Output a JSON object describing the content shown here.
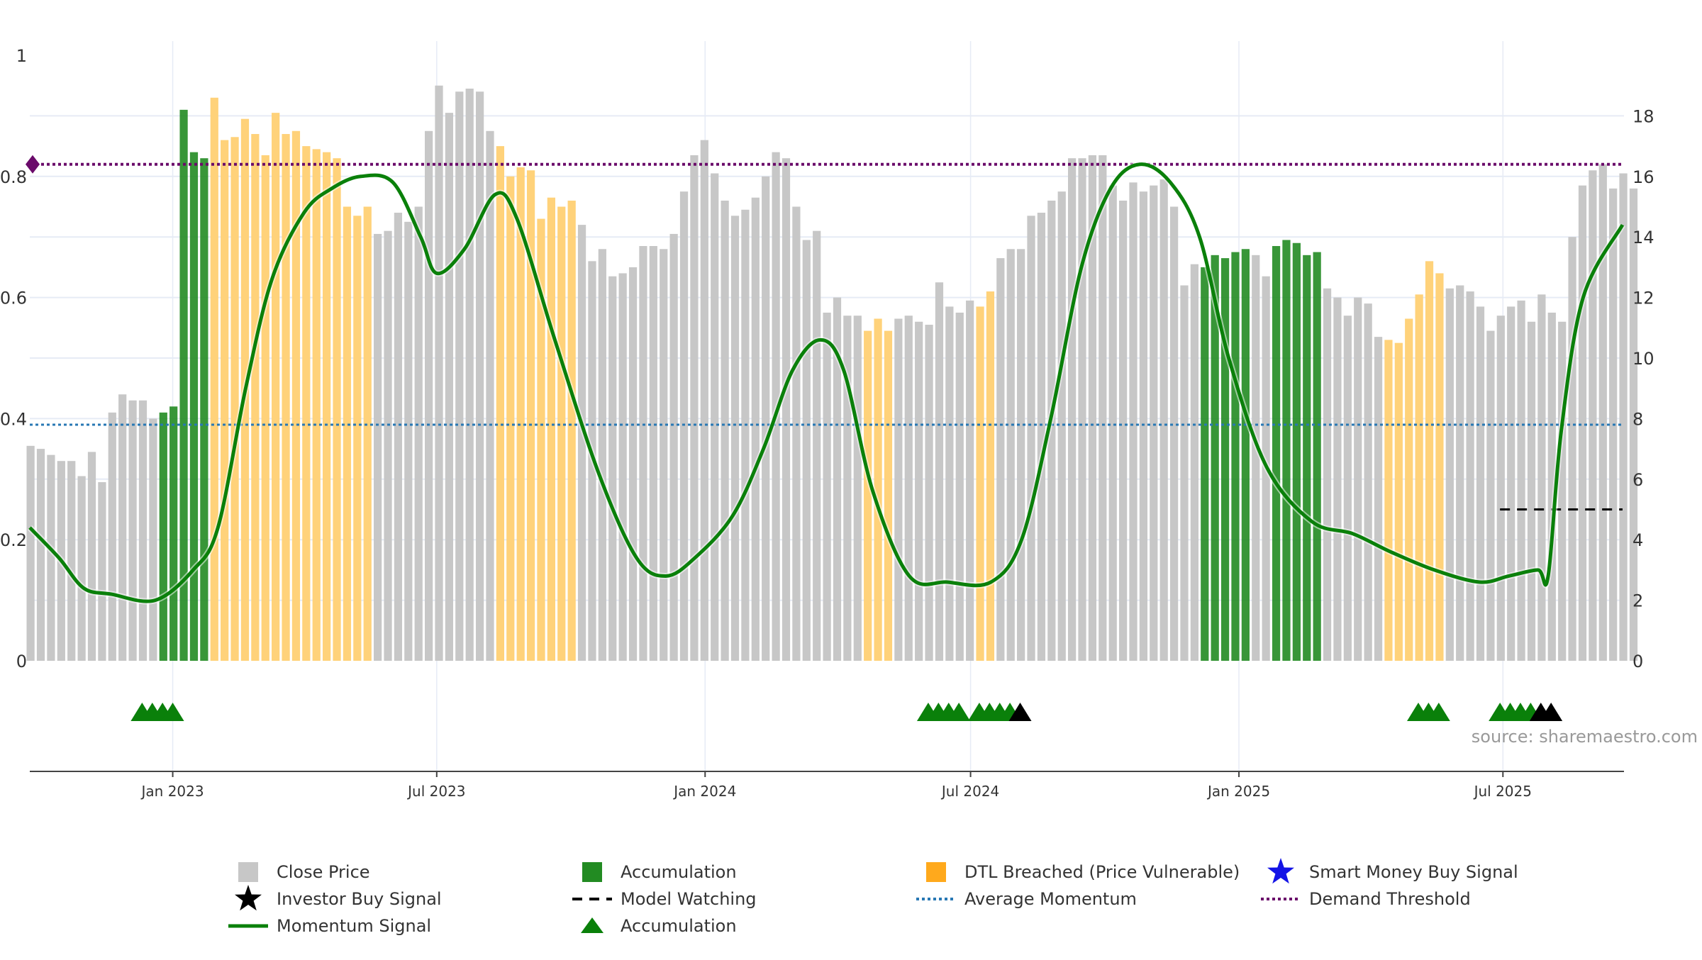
{
  "source_label": "source: sharemaestro.com",
  "colors": {
    "price_bar": "#c7c7c7",
    "accumulation_bar": "#228b22",
    "dtl_bar": "#ffd27a",
    "momentum": "#0a800a",
    "demand_threshold": "#6a0a6a",
    "average_momentum": "#2878b4",
    "grid": "#e6ebf5",
    "investor_signal": "#000000",
    "smart_money": "#1414e6"
  },
  "legend": {
    "close_price": "Close Price",
    "accumulation": "Accumulation",
    "dtl_breached": "DTL Breached (Price Vulnerable)",
    "smart_money": "Smart Money Buy Signal",
    "investor_buy": "Investor Buy Signal",
    "model_watching": "Model Watching",
    "average_momentum": "Average Momentum",
    "demand_threshold": "Demand Threshold",
    "momentum_signal": "Momentum Signal",
    "accumulation_marker": "Accumulation"
  },
  "chart_data": {
    "type": "bar",
    "x_range": [
      "2022-09-25",
      "2025-09-22"
    ],
    "x_tick_labels": [
      "Jan 2023",
      "Jul 2023",
      "Jan 2024",
      "Jul 2024",
      "Jan 2025",
      "Jul 2025"
    ],
    "x_ticks": [
      "2023-01-01",
      "2023-07-01",
      "2024-01-01",
      "2024-07-01",
      "2025-01-01",
      "2025-07-01"
    ],
    "y_left": {
      "range": [
        0,
        1
      ],
      "ticks": [
        0,
        0.2,
        0.4,
        0.6,
        0.8,
        1
      ],
      "tick_labels": [
        "0",
        "0.2",
        "0.4",
        "0.6",
        "0.8",
        "1"
      ]
    },
    "y_right": {
      "range": [
        0,
        20
      ],
      "ticks": [
        0,
        2,
        4,
        6,
        8,
        10,
        12,
        14,
        16,
        18
      ],
      "tick_labels": [
        "0",
        "2",
        "4",
        "6",
        "8",
        "10",
        "12",
        "14",
        "16",
        "18"
      ]
    },
    "grid": true,
    "legend_position": "bottom",
    "demand_threshold": 0.82,
    "average_momentum": 0.39,
    "model_watching": {
      "start": "2025-06-29",
      "end": "2025-09-21",
      "value": 0.25
    },
    "weekly_start": "2022-09-25",
    "weekly_price": [
      7.1,
      7.0,
      6.8,
      6.6,
      6.6,
      6.1,
      6.9,
      5.9,
      8.2,
      8.8,
      8.6,
      8.6,
      8.0,
      8.2,
      8.4,
      18.2,
      16.8,
      16.6,
      18.6,
      17.2,
      17.3,
      17.9,
      17.4,
      16.7,
      18.1,
      17.4,
      17.5,
      17.0,
      16.9,
      16.8,
      16.6,
      15.0,
      14.7,
      15.0,
      14.1,
      14.2,
      14.8,
      14.5,
      15.0,
      17.5,
      19.0,
      18.1,
      18.8,
      18.9,
      18.8,
      17.5,
      17.0,
      16.0,
      16.3,
      16.2,
      14.6,
      15.3,
      15.0,
      15.2,
      14.4,
      13.2,
      13.6,
      12.7,
      12.8,
      13.0,
      13.7,
      13.7,
      13.6,
      14.1,
      15.5,
      16.7,
      17.2,
      16.1,
      15.2,
      14.7,
      14.9,
      15.3,
      16.0,
      16.8,
      16.6,
      15.0,
      13.9,
      14.2,
      11.5,
      12.0,
      11.4,
      11.4,
      10.9,
      11.3,
      10.9,
      11.3,
      11.4,
      11.2,
      11.1,
      12.5,
      11.7,
      11.5,
      11.9,
      11.7,
      12.2,
      13.3,
      13.6,
      13.6,
      14.7,
      14.8,
      15.2,
      15.5,
      16.6,
      16.6,
      16.7,
      16.7,
      15.7,
      15.2,
      15.8,
      15.5,
      15.7,
      15.9,
      15.0,
      12.4,
      13.1,
      13.0,
      13.4,
      13.3,
      13.5,
      13.6,
      13.4,
      12.7,
      13.7,
      13.9,
      13.8,
      13.4,
      13.5,
      12.3,
      12.0,
      11.4,
      12.0,
      11.8,
      10.7,
      10.6,
      10.5,
      11.3,
      12.1,
      13.2,
      12.8,
      12.3,
      12.4,
      12.2,
      11.7,
      10.9,
      11.4,
      11.7,
      11.9,
      11.2,
      12.1,
      11.5,
      11.2,
      14.0,
      15.7,
      16.2,
      16.4,
      15.6,
      16.1,
      15.6
    ],
    "weekly_class": "GGGGGGGGGGGGGAAAAADDDDDDDDDDDDDDDDGGGGGGGGGGGGDDDDDDDDGGGGGGGGGGGGGGGGGGGGGGGGGGGGDDDGGGGGGGGDDGGGGGGGGGGGGGGGGGGGGAAAAAGGAAAAAGGGGGGDDDDDDGGGGGGGGGGGGGGGGGGGGGGGGGGGGGGGGGGGGGGGGAAAAAGGGGGGGGAAAAAAAGGGGGDGGGG",
    "momentum": [
      {
        "x": "2022-09-25",
        "y": 0.22
      },
      {
        "x": "2022-10-15",
        "y": 0.17
      },
      {
        "x": "2022-11-01",
        "y": 0.12
      },
      {
        "x": "2022-11-20",
        "y": 0.11
      },
      {
        "x": "2022-12-20",
        "y": 0.1
      },
      {
        "x": "2023-01-15",
        "y": 0.15
      },
      {
        "x": "2023-02-01",
        "y": 0.22
      },
      {
        "x": "2023-02-20",
        "y": 0.45
      },
      {
        "x": "2023-03-10",
        "y": 0.63
      },
      {
        "x": "2023-04-01",
        "y": 0.74
      },
      {
        "x": "2023-04-20",
        "y": 0.78
      },
      {
        "x": "2023-05-10",
        "y": 0.8
      },
      {
        "x": "2023-06-01",
        "y": 0.79
      },
      {
        "x": "2023-06-20",
        "y": 0.7
      },
      {
        "x": "2023-07-01",
        "y": 0.64
      },
      {
        "x": "2023-07-20",
        "y": 0.68
      },
      {
        "x": "2023-08-10",
        "y": 0.77
      },
      {
        "x": "2023-08-25",
        "y": 0.73
      },
      {
        "x": "2023-09-20",
        "y": 0.53
      },
      {
        "x": "2023-10-20",
        "y": 0.31
      },
      {
        "x": "2023-11-15",
        "y": 0.17
      },
      {
        "x": "2023-12-05",
        "y": 0.14
      },
      {
        "x": "2023-12-25",
        "y": 0.17
      },
      {
        "x": "2024-01-20",
        "y": 0.24
      },
      {
        "x": "2024-02-10",
        "y": 0.35
      },
      {
        "x": "2024-03-01",
        "y": 0.48
      },
      {
        "x": "2024-03-20",
        "y": 0.53
      },
      {
        "x": "2024-04-05",
        "y": 0.48
      },
      {
        "x": "2024-04-25",
        "y": 0.28
      },
      {
        "x": "2024-05-20",
        "y": 0.14
      },
      {
        "x": "2024-06-15",
        "y": 0.13
      },
      {
        "x": "2024-07-15",
        "y": 0.13
      },
      {
        "x": "2024-08-05",
        "y": 0.2
      },
      {
        "x": "2024-08-25",
        "y": 0.4
      },
      {
        "x": "2024-09-15",
        "y": 0.65
      },
      {
        "x": "2024-10-05",
        "y": 0.78
      },
      {
        "x": "2024-10-25",
        "y": 0.82
      },
      {
        "x": "2024-11-15",
        "y": 0.79
      },
      {
        "x": "2024-12-05",
        "y": 0.7
      },
      {
        "x": "2024-12-25",
        "y": 0.5
      },
      {
        "x": "2025-01-20",
        "y": 0.32
      },
      {
        "x": "2025-02-20",
        "y": 0.23
      },
      {
        "x": "2025-03-20",
        "y": 0.21
      },
      {
        "x": "2025-04-15",
        "y": 0.18
      },
      {
        "x": "2025-05-15",
        "y": 0.15
      },
      {
        "x": "2025-06-15",
        "y": 0.13
      },
      {
        "x": "2025-07-05",
        "y": 0.14
      },
      {
        "x": "2025-07-25",
        "y": 0.15
      },
      {
        "x": "2025-08-01",
        "y": 0.14
      },
      {
        "x": "2025-08-10",
        "y": 0.38
      },
      {
        "x": "2025-08-25",
        "y": 0.6
      },
      {
        "x": "2025-09-21",
        "y": 0.72
      }
    ],
    "accumulation_markers": [
      "2022-12-11",
      "2022-12-18",
      "2022-12-25",
      "2023-01-01",
      "2024-06-02",
      "2024-06-09",
      "2024-06-16",
      "2024-06-23",
      "2024-07-07",
      "2024-07-14",
      "2024-07-21",
      "2024-07-28",
      "2025-05-04",
      "2025-05-11",
      "2025-05-18",
      "2025-06-29",
      "2025-07-06",
      "2025-07-13",
      "2025-07-20"
    ],
    "investor_markers": [
      "2024-08-04",
      "2025-07-27",
      "2025-08-03"
    ]
  }
}
